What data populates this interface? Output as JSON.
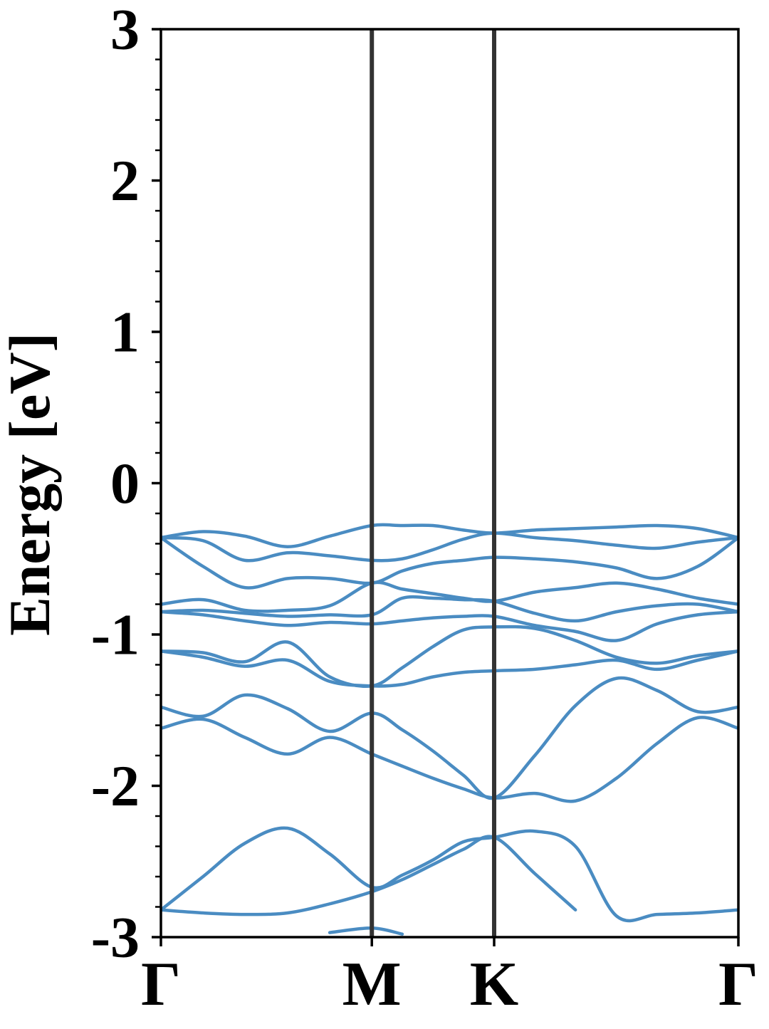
{
  "chart_data": {
    "type": "line",
    "y_label": "Energy [eV]",
    "x": [
      0,
      0.115,
      0.229,
      0.346,
      0.461,
      0.576,
      0.659,
      0.743,
      0.826,
      0.91,
      1.021,
      1.132,
      1.244,
      1.355,
      1.466,
      1.577
    ],
    "xlim": [
      0,
      1.577
    ],
    "xticks": [
      {
        "value": 0,
        "label": "Γ"
      },
      {
        "value": 0.576,
        "label": "M"
      },
      {
        "value": 0.91,
        "label": "K"
      },
      {
        "value": 1.577,
        "label": "Γ"
      }
    ],
    "ylim": [
      -3,
      3
    ],
    "yticks": [
      -3,
      -2,
      -1,
      0,
      1,
      2,
      3
    ],
    "yminorticks": [
      -2.8,
      -2.6,
      -2.4,
      -2.2,
      -1.8,
      -1.6,
      -1.4,
      -1.2,
      -0.8,
      -0.6,
      -0.4,
      -0.2,
      0.2,
      0.4,
      0.6,
      0.8,
      1.2,
      1.4,
      1.6,
      1.8,
      2.2,
      2.4,
      2.6,
      2.8
    ],
    "vlines_at_xticks": true,
    "color": "#4a8cc2",
    "series": [
      {
        "values": [
          -0.36,
          -0.32,
          -0.35,
          -0.42,
          -0.35,
          -0.28,
          -0.28,
          -0.28,
          -0.31,
          -0.33,
          -0.31,
          -0.3,
          -0.29,
          -0.28,
          -0.3,
          -0.36
        ]
      },
      {
        "values": [
          -0.36,
          -0.38,
          -0.51,
          -0.46,
          -0.48,
          -0.51,
          -0.5,
          -0.44,
          -0.37,
          -0.33,
          -0.36,
          -0.38,
          -0.41,
          -0.43,
          -0.39,
          -0.36
        ]
      },
      {
        "values": [
          -0.36,
          -0.55,
          -0.69,
          -0.63,
          -0.63,
          -0.66,
          -0.58,
          -0.53,
          -0.51,
          -0.49,
          -0.5,
          -0.52,
          -0.56,
          -0.63,
          -0.55,
          -0.36
        ]
      },
      {
        "values": [
          -0.8,
          -0.77,
          -0.84,
          -0.84,
          -0.81,
          -0.66,
          -0.7,
          -0.73,
          -0.76,
          -0.78,
          -0.72,
          -0.69,
          -0.66,
          -0.7,
          -0.76,
          -0.8
        ]
      },
      {
        "values": [
          -0.85,
          -0.84,
          -0.86,
          -0.88,
          -0.87,
          -0.87,
          -0.76,
          -0.76,
          -0.77,
          -0.78,
          -0.86,
          -0.91,
          -0.85,
          -0.81,
          -0.8,
          -0.85
        ]
      },
      {
        "values": [
          -0.85,
          -0.87,
          -0.91,
          -0.94,
          -0.92,
          -0.93,
          -0.91,
          -0.89,
          -0.88,
          -0.88,
          -0.94,
          -0.98,
          -1.04,
          -0.93,
          -0.87,
          -0.85
        ]
      },
      {
        "values": [
          -1.11,
          -1.12,
          -1.18,
          -1.05,
          -1.28,
          -1.34,
          -1.22,
          -1.08,
          -0.97,
          -0.95,
          -0.96,
          -1.04,
          -1.15,
          -1.19,
          -1.14,
          -1.11
        ]
      },
      {
        "values": [
          -1.11,
          -1.15,
          -1.21,
          -1.17,
          -1.31,
          -1.34,
          -1.33,
          -1.28,
          -1.25,
          -1.24,
          -1.23,
          -1.2,
          -1.17,
          -1.23,
          -1.17,
          -1.11
        ]
      },
      {
        "values": [
          -1.48,
          -1.54,
          -1.4,
          -1.49,
          -1.64,
          -1.52,
          -1.63,
          -1.77,
          -1.93,
          -2.08,
          -1.8,
          -1.47,
          -1.29,
          -1.37,
          -1.51,
          -1.48
        ]
      },
      {
        "values": [
          -1.62,
          -1.56,
          -1.68,
          -1.79,
          -1.68,
          -1.79,
          -1.87,
          -1.95,
          -2.02,
          -2.08,
          -2.05,
          -2.1,
          -1.95,
          -1.72,
          -1.55,
          -1.62
        ]
      },
      {
        "values": [
          -2.82,
          -2.6,
          -2.38,
          -2.28,
          -2.45,
          -2.67,
          -2.59,
          -2.49,
          -2.37,
          -2.34,
          -2.3,
          -2.4,
          -2.86,
          -2.85,
          -2.84,
          -2.82
        ]
      },
      {
        "values": [
          -2.82,
          -2.84,
          -2.85,
          -2.84,
          -2.78,
          -2.7,
          -2.62,
          -2.52,
          -2.42,
          -2.34,
          -2.58,
          -2.82,
          null,
          null,
          null,
          null
        ]
      },
      {
        "values": [
          null,
          null,
          null,
          null,
          -2.97,
          -2.94,
          -2.98,
          null,
          null,
          null,
          null,
          null,
          null,
          null,
          null,
          null
        ]
      }
    ]
  }
}
